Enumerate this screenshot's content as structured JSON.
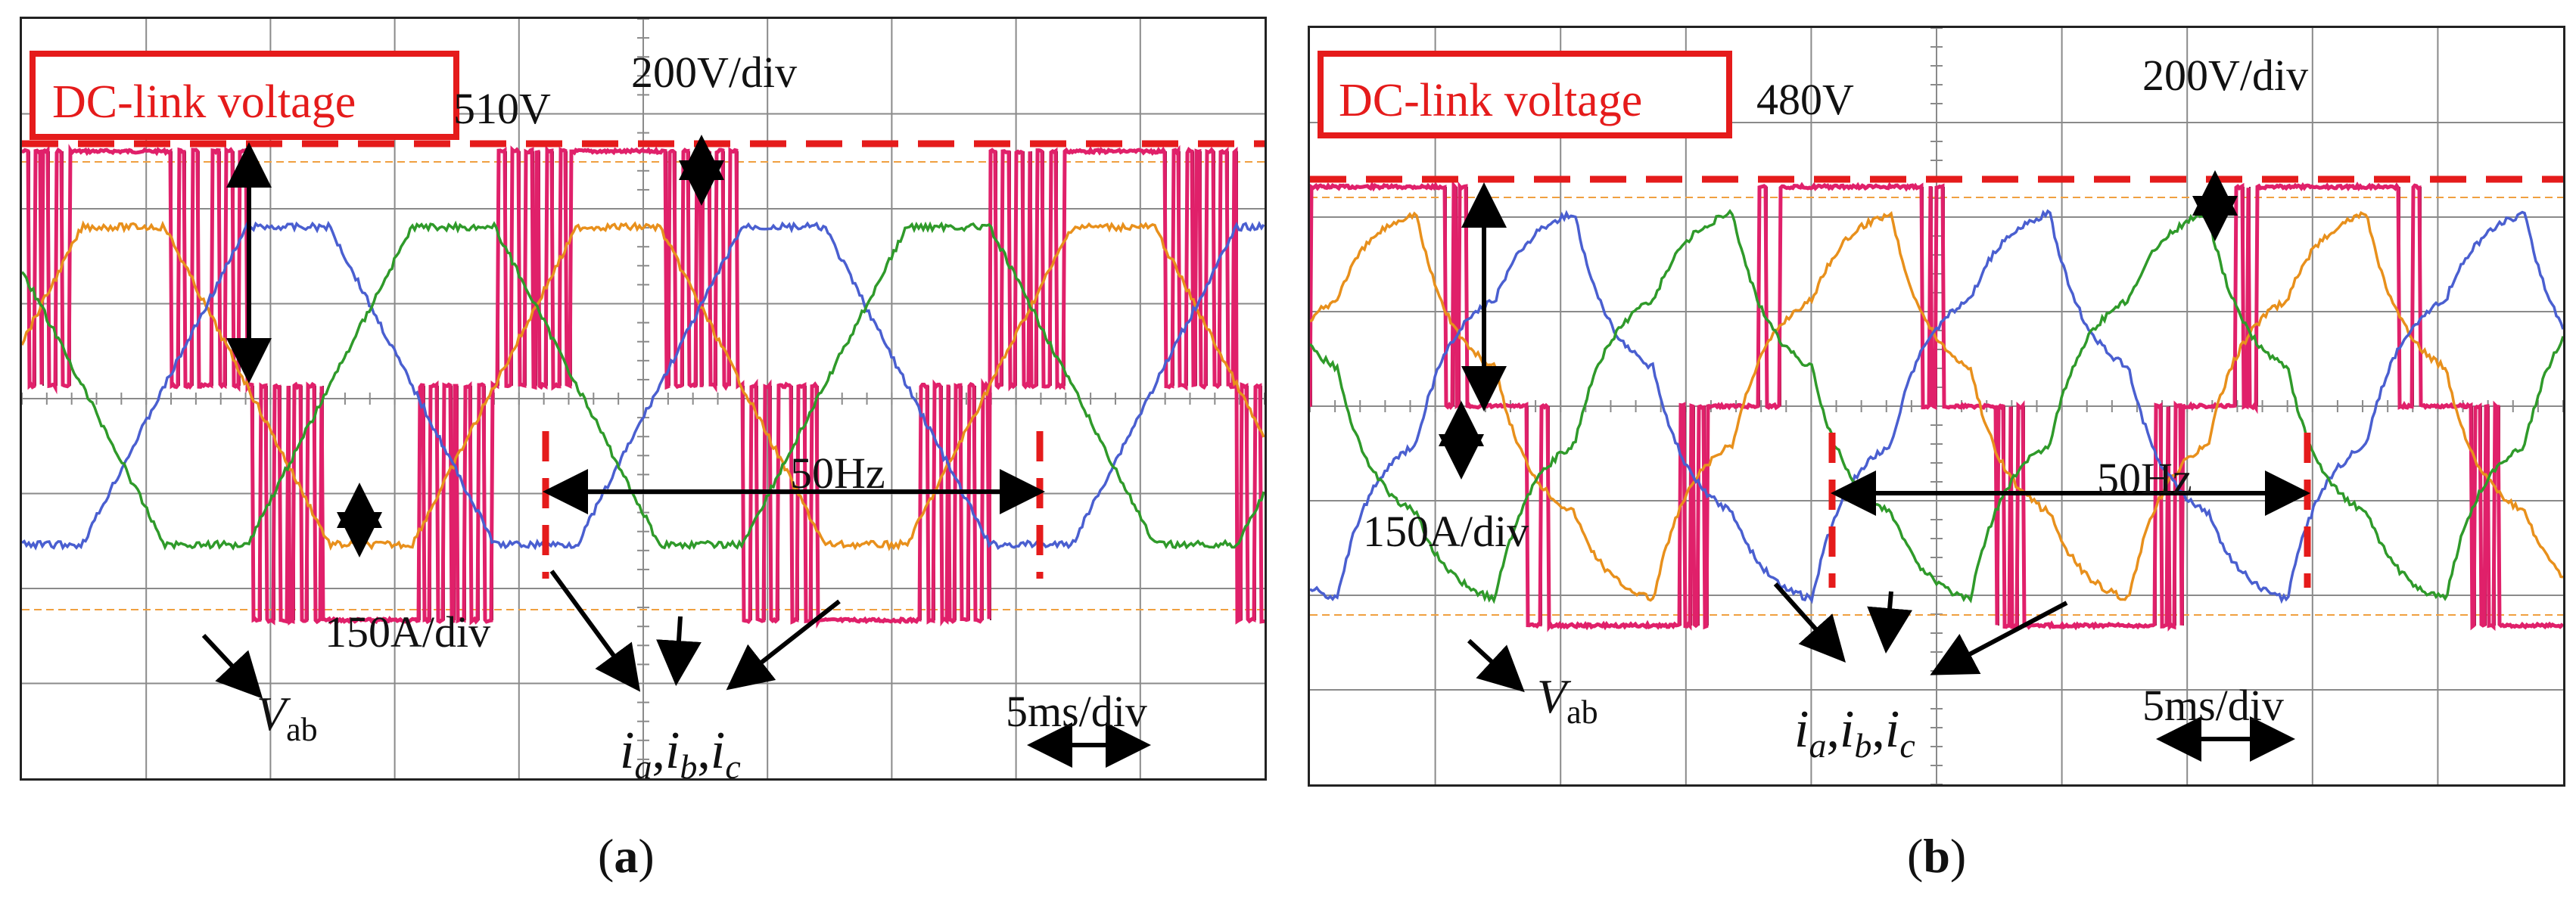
{
  "figure": {
    "panels": [
      {
        "id": "a",
        "caption_letter": "a",
        "labels": {
          "dc_link": "DC-link voltage",
          "dc_value": "510V",
          "volt_div": "200V/div",
          "freq": "50Hz",
          "amp_div": "150A/div",
          "time_div": "5ms/div",
          "vab_main": "V",
          "vab_sub": "ab",
          "currents": [
            "i",
            "a",
            ",",
            "i",
            "b",
            ",",
            "i",
            "c"
          ]
        }
      },
      {
        "id": "b",
        "caption_letter": "b",
        "labels": {
          "dc_link": "DC-link voltage",
          "dc_value": "480V",
          "volt_div": "200V/div",
          "freq": "50Hz",
          "amp_div": "150A/div",
          "time_div": "5ms/div",
          "vab_main": "V",
          "vab_sub": "ab",
          "currents": [
            "i",
            "a",
            ",",
            "i",
            "b",
            ",",
            "i",
            "c"
          ]
        }
      }
    ],
    "colors": {
      "phase_a": "#e8901c",
      "phase_b": "#4a5fd0",
      "phase_c": "#2f9a2a",
      "vab": "#e0206a",
      "pwm": "#7a1a3a",
      "annotation": "#e51b1b",
      "grid": "#8a8a8a"
    }
  },
  "chart_data": [
    {
      "type": "line",
      "panel": "a",
      "x_unit": "ms",
      "x_range": [
        0,
        50
      ],
      "time_per_div_ms": 5,
      "volts_per_div": 200,
      "amps_per_div": 150,
      "dc_link_voltage_V": 510,
      "fundamental_frequency_Hz": 50,
      "current_amplitude_A": 275,
      "current_waveform": "trapezoidal",
      "series": [
        {
          "name": "V",
          "kind": "line-voltage",
          "levels_V": [
            510,
            0,
            -510
          ]
        },
        {
          "name": "i",
          "phase": "a",
          "phase_shift_deg": 0
        },
        {
          "name": "i",
          "phase": "b",
          "phase_shift_deg": -120
        },
        {
          "name": "i",
          "phase": "c",
          "phase_shift_deg": 120
        }
      ]
    },
    {
      "type": "line",
      "panel": "b",
      "x_unit": "ms",
      "x_range": [
        0,
        50
      ],
      "time_per_div_ms": 5,
      "volts_per_div": 200,
      "amps_per_div": 150,
      "dc_link_voltage_V": 480,
      "fundamental_frequency_Hz": 50,
      "current_amplitude_A": 330,
      "current_waveform": "six-step",
      "series": [
        {
          "name": "V",
          "kind": "line-voltage",
          "levels_V": [
            480,
            0,
            -480
          ]
        },
        {
          "name": "i",
          "phase": "a",
          "phase_shift_deg": 0
        },
        {
          "name": "i",
          "phase": "b",
          "phase_shift_deg": -120
        },
        {
          "name": "i",
          "phase": "c",
          "phase_shift_deg": 120
        }
      ]
    }
  ]
}
